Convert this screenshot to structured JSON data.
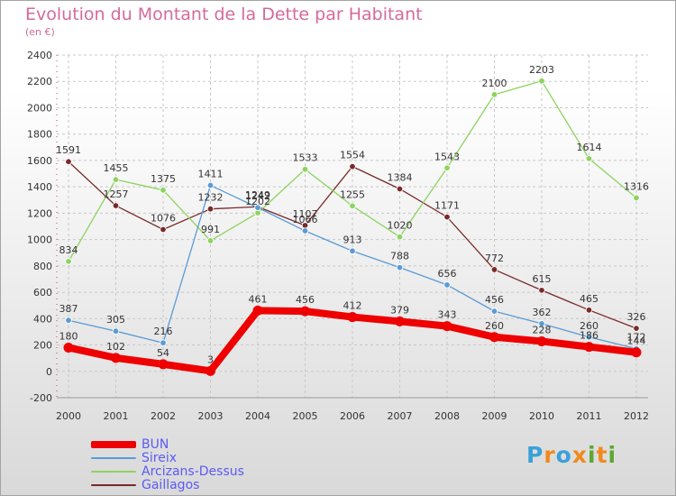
{
  "title": "Evolution du Montant de la Dette par Habitant",
  "subtitle": "(en €)",
  "logo": {
    "text": "Proxiti",
    "colors": [
      "#3aa0d8",
      "#f08a1c",
      "#3aa0d8",
      "#f08a1c",
      "#5aa832",
      "#f08a1c",
      "#5aa832"
    ]
  },
  "chart_data": {
    "type": "line",
    "x": [
      "2000",
      "2001",
      "2002",
      "2003",
      "2004",
      "2005",
      "2006",
      "2007",
      "2008",
      "2009",
      "2010",
      "2011",
      "2012"
    ],
    "ylim": [
      -200,
      2400
    ],
    "yticks": [
      -200,
      0,
      200,
      400,
      600,
      800,
      1000,
      1200,
      1400,
      1600,
      1800,
      2000,
      2200,
      2400
    ],
    "grid": true,
    "legend_position": "bottom-left",
    "series": [
      {
        "name": "BUN",
        "color": "#ee0000",
        "values": [
          180,
          102,
          54,
          3,
          461,
          456,
          412,
          379,
          343,
          260,
          228,
          186,
          144
        ],
        "labels": [
          "180",
          "102",
          "54",
          "3",
          "461",
          "456",
          "412",
          "379",
          "343",
          "260",
          "228",
          "186",
          "144"
        ]
      },
      {
        "name": "Sireix",
        "color": "#5b9bd5",
        "values": [
          387,
          305,
          216,
          1411,
          1242,
          1066,
          913,
          788,
          656,
          456,
          362,
          260,
          172
        ],
        "labels": [
          "387",
          "305",
          "216",
          "1411",
          "1242",
          "1066",
          "913",
          "788",
          "656",
          "456",
          "362",
          "260",
          "172"
        ]
      },
      {
        "name": "Arcizans-Dessus",
        "color": "#8dd35f",
        "values": [
          834,
          1455,
          1375,
          991,
          1202,
          1533,
          1255,
          1020,
          1543,
          2100,
          2203,
          1614,
          1316
        ],
        "labels": [
          "834",
          "1455",
          "1375",
          "991",
          "1202",
          "1533",
          "1255",
          "1020",
          "1543",
          "2100",
          "2203",
          "1614",
          "1316"
        ]
      },
      {
        "name": "Gaillagos",
        "color": "#7a2a2a",
        "values": [
          1591,
          1257,
          1076,
          1232,
          1249,
          1107,
          1554,
          1384,
          1171,
          772,
          615,
          465,
          326
        ],
        "labels": [
          "1591",
          "1257",
          "1076",
          "1232",
          "1249",
          "1107",
          "1554",
          "1384",
          "1171",
          "772",
          "615",
          "465",
          "326"
        ]
      }
    ]
  }
}
